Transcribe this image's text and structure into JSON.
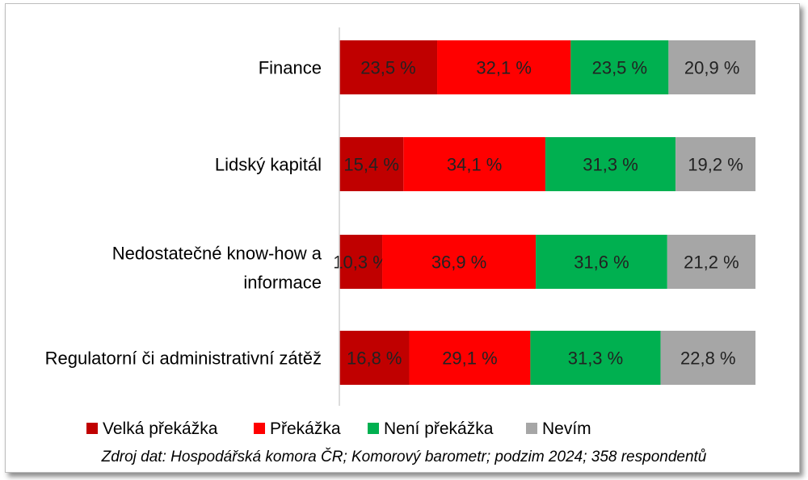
{
  "chart_data": {
    "type": "bar",
    "orientation": "horizontal",
    "stacked": true,
    "categories": [
      "Finance",
      "Lidský kapitál",
      "Nedostatečné know-how a informace",
      "Regulatorní či administrativní zátěž"
    ],
    "series": [
      {
        "name": "Velká překážka",
        "color": "#c00000",
        "values": [
          23.5,
          15.4,
          10.3,
          16.8
        ],
        "labels": [
          "23,5 %",
          "15,4 %",
          "10,3 %",
          "16,8 %"
        ]
      },
      {
        "name": "Překážka",
        "color": "#ff0000",
        "values": [
          32.1,
          34.1,
          36.9,
          29.1
        ],
        "labels": [
          "32,1 %",
          "34,1 %",
          "36,9 %",
          "29,1 %"
        ]
      },
      {
        "name": "Není překážka",
        "color": "#00b050",
        "values": [
          23.5,
          31.3,
          31.6,
          31.3
        ],
        "labels": [
          "23,5 %",
          "31,3 %",
          "31,6 %",
          "31,3 %"
        ]
      },
      {
        "name": "Nevím",
        "color": "#a6a6a6",
        "values": [
          20.9,
          19.2,
          21.2,
          22.8
        ],
        "labels": [
          "20,9 %",
          "19,2 %",
          "21,2 %",
          "22,8 %"
        ]
      }
    ],
    "legend_position": "bottom",
    "grid": false
  },
  "source_note": "Zdroj dat: Hospodářská komora ČR; Komorový barometr; podzim 2024; 358 respondentů"
}
